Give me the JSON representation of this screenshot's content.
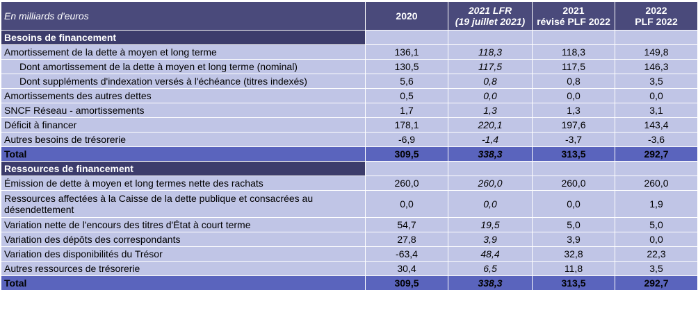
{
  "header": {
    "unit": "En milliards d'euros",
    "col1": "2020",
    "col2_l1": "2021 LFR",
    "col2_l2": "(19 juillet 2021)",
    "col3_l1": "2021",
    "col3_l2": "révisé PLF 2022",
    "col4_l1": "2022",
    "col4_l2": "PLF 2022"
  },
  "besoins": {
    "title": "Besoins de financement",
    "rows": [
      {
        "label": "Amortissement de la dette à moyen et long terme",
        "v2020": "136,1",
        "lfr": "118,3",
        "rev": "118,3",
        "plf": "149,8"
      },
      {
        "label": "Dont amortissement de la dette à moyen et long terme (nominal)",
        "v2020": "130,5",
        "lfr": "117,5",
        "rev": "117,5",
        "plf": "146,3"
      },
      {
        "label": "Dont suppléments d'indexation versés à l'échéance (titres indexés)",
        "v2020": "5,6",
        "lfr": "0,8",
        "rev": "0,8",
        "plf": "3,5"
      },
      {
        "label": "Amortissements des autres dettes",
        "v2020": "0,5",
        "lfr": "0,0",
        "rev": "0,0",
        "plf": "0,0"
      },
      {
        "label": "SNCF Réseau - amortissements",
        "v2020": "1,7",
        "lfr": "1,3",
        "rev": "1,3",
        "plf": "3,1"
      },
      {
        "label": "Déficit à financer",
        "v2020": "178,1",
        "lfr": "220,1",
        "rev": "197,6",
        "plf": "143,4"
      },
      {
        "label": "Autres besoins de trésorerie",
        "v2020": "-6,9",
        "lfr": "-1,4",
        "rev": "-3,7",
        "plf": "-3,6"
      }
    ],
    "total": {
      "label": "Total",
      "v2020": "309,5",
      "lfr": "338,3",
      "rev": "313,5",
      "plf": "292,7"
    }
  },
  "ressources": {
    "title": "Ressources de financement",
    "rows": [
      {
        "label": "Émission de dette à moyen et long termes nette des rachats",
        "v2020": "260,0",
        "lfr": "260,0",
        "rev": "260,0",
        "plf": "260,0"
      },
      {
        "label_l1": "Ressources affectées à la Caisse de la dette publique et consacrées au",
        "label_l2": "désendettement",
        "v2020": "0,0",
        "lfr": "0,0",
        "rev": "0,0",
        "plf": "1,9"
      },
      {
        "label": "Variation nette de l'encours des titres d'État à court terme",
        "v2020": "54,7",
        "lfr": "19,5",
        "rev": "5,0",
        "plf": "5,0"
      },
      {
        "label": "Variation des dépôts des correspondants",
        "v2020": "27,8",
        "lfr": "3,9",
        "rev": "3,9",
        "plf": "0,0"
      },
      {
        "label": "Variation des disponibilités du Trésor",
        "v2020": "-63,4",
        "lfr": "48,4",
        "rev": "32,8",
        "plf": "22,3"
      },
      {
        "label": "Autres ressources de trésorerie",
        "v2020": "30,4",
        "lfr": "6,5",
        "rev": "11,8",
        "plf": "3,5"
      }
    ],
    "total": {
      "label": "Total",
      "v2020": "309,5",
      "lfr": "338,3",
      "rev": "313,5",
      "plf": "292,7"
    }
  },
  "colors": {
    "header": "#4a4a7b",
    "section": "#3c3c6b",
    "row": "#c0c5e6",
    "total": "#5a64bd"
  }
}
